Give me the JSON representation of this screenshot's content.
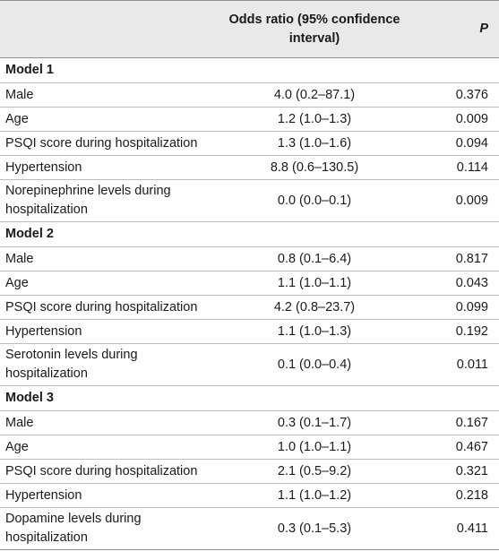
{
  "header": {
    "col_label": "",
    "col_or": "Odds ratio (95% confidence interval)",
    "col_p": "P"
  },
  "models": [
    {
      "title": "Model 1",
      "rows": [
        {
          "label": "Male",
          "or": "4.0 (0.2–87.1)",
          "p": "0.376"
        },
        {
          "label": "Age",
          "or": "1.2 (1.0–1.3)",
          "p": "0.009"
        },
        {
          "label": "PSQI score during hospitalization",
          "or": "1.3 (1.0–1.6)",
          "p": "0.094"
        },
        {
          "label": "Hypertension",
          "or": "8.8 (0.6–130.5)",
          "p": "0.114"
        },
        {
          "label": "Norepinephrine levels during hospitalization",
          "or": "0.0 (0.0–0.1)",
          "p": "0.009"
        }
      ]
    },
    {
      "title": "Model 2",
      "rows": [
        {
          "label": "Male",
          "or": "0.8 (0.1–6.4)",
          "p": "0.817"
        },
        {
          "label": "Age",
          "or": "1.1 (1.0–1.1)",
          "p": "0.043"
        },
        {
          "label": "PSQI score during hospitalization",
          "or": "4.2 (0.8–23.7)",
          "p": "0.099"
        },
        {
          "label": "Hypertension",
          "or": "1.1 (1.0–1.3)",
          "p": "0.192"
        },
        {
          "label": "Serotonin levels during hospitalization",
          "or": "0.1 (0.0–0.4)",
          "p": "0.011"
        }
      ]
    },
    {
      "title": "Model 3",
      "rows": [
        {
          "label": "Male",
          "or": "0.3 (0.1–1.7)",
          "p": "0.167"
        },
        {
          "label": "Age",
          "or": "1.0 (1.0–1.1)",
          "p": "0.467"
        },
        {
          "label": "PSQI score during hospitalization",
          "or": "2.1 (0.5–9.2)",
          "p": "0.321"
        },
        {
          "label": "Hypertension",
          "or": "1.1 (1.0–1.2)",
          "p": "0.218"
        },
        {
          "label": "Dopamine levels during hospitalization",
          "or": "0.3 (0.1–5.3)",
          "p": "0.411"
        }
      ]
    }
  ],
  "colors": {
    "header_bg": "#e9e9e9",
    "rule": "#bdbdbd",
    "text": "#1a1a1a"
  }
}
